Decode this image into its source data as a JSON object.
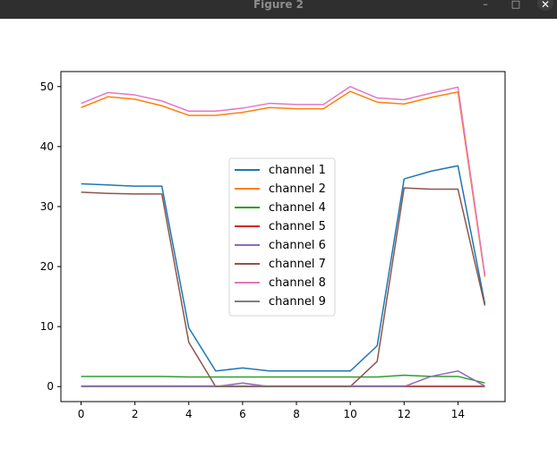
{
  "window": {
    "title": "Figure 2",
    "minimize_glyph": "–",
    "maximize_glyph": "□",
    "close_glyph": "✕"
  },
  "chart_data": {
    "type": "line",
    "xlim": [
      -0.75,
      15.75
    ],
    "ylim": [
      -2.5,
      52.5
    ],
    "xticks": [
      0,
      2,
      4,
      6,
      8,
      10,
      12,
      14
    ],
    "yticks": [
      0,
      10,
      20,
      30,
      40,
      50
    ],
    "grid": false,
    "legend_position": "center",
    "x": [
      0,
      1,
      2,
      3,
      4,
      5,
      6,
      7,
      8,
      9,
      10,
      11,
      12,
      13,
      14,
      15
    ],
    "series": [
      {
        "name": "channel 1",
        "color": "#1f77b4",
        "values": [
          33.8,
          33.6,
          33.4,
          33.4,
          9.8,
          2.6,
          3.1,
          2.6,
          2.6,
          2.6,
          2.6,
          6.8,
          34.6,
          35.9,
          36.8,
          13.8
        ]
      },
      {
        "name": "channel 2",
        "color": "#ff7f0e",
        "values": [
          46.5,
          48.3,
          47.9,
          46.8,
          45.2,
          45.2,
          45.7,
          46.5,
          46.3,
          46.3,
          49.2,
          47.4,
          47.1,
          48.2,
          49.1,
          18.3
        ]
      },
      {
        "name": "channel 4",
        "color": "#2ca02c",
        "values": [
          1.7,
          1.7,
          1.7,
          1.7,
          1.6,
          1.6,
          1.6,
          1.6,
          1.6,
          1.6,
          1.6,
          1.6,
          1.9,
          1.7,
          1.7,
          0.6
        ]
      },
      {
        "name": "channel 5",
        "color": "#d62728",
        "values": [
          0.0,
          0.0,
          0.0,
          0.0,
          0.0,
          0.0,
          0.0,
          0.0,
          0.0,
          0.0,
          0.0,
          0.0,
          0.0,
          0.0,
          0.0,
          0.0
        ]
      },
      {
        "name": "channel 6",
        "color": "#9467bd",
        "values": [
          0.0,
          0.0,
          0.0,
          0.0,
          0.0,
          0.0,
          0.6,
          0.0,
          0.0,
          0.0,
          0.0,
          0.0,
          0.0,
          1.7,
          2.6,
          0.1
        ]
      },
      {
        "name": "channel 7",
        "color": "#8c564b",
        "values": [
          32.4,
          32.2,
          32.1,
          32.1,
          7.4,
          0.0,
          0.0,
          0.0,
          0.0,
          0.0,
          0.0,
          4.2,
          33.1,
          32.9,
          32.9,
          13.5
        ]
      },
      {
        "name": "channel 8",
        "color": "#e377c2",
        "values": [
          47.2,
          49.0,
          48.6,
          47.6,
          45.9,
          45.9,
          46.4,
          47.2,
          47.0,
          47.0,
          50.0,
          48.1,
          47.8,
          48.9,
          49.9,
          18.6
        ]
      },
      {
        "name": "channel 9",
        "color": "#7f7f7f",
        "values": [
          0.1,
          0.1,
          0.1,
          0.1,
          0.1,
          0.1,
          0.1,
          0.1,
          0.1,
          0.1,
          0.1,
          0.1,
          0.1,
          0.1,
          0.1,
          0.1
        ]
      }
    ]
  }
}
